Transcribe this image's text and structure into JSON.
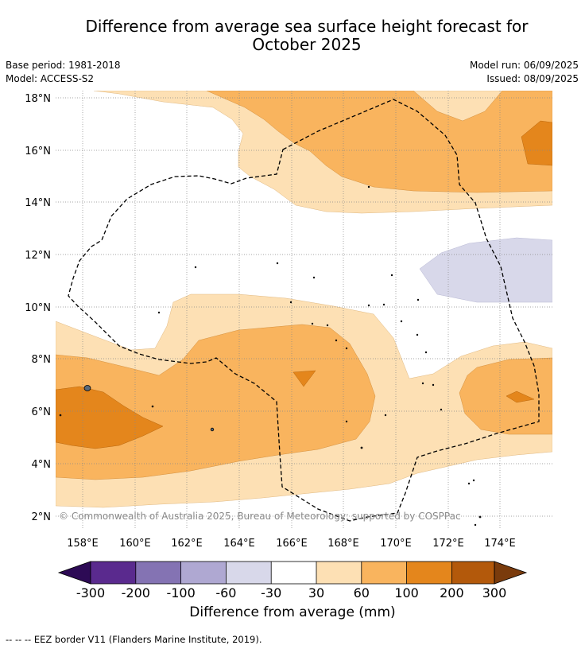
{
  "title_line1": "Difference from average sea surface height forecast for",
  "title_line2": "October 2025",
  "left_meta": {
    "base_period": "Base period: 1981-2018",
    "model": "Model: ACCESS-S2"
  },
  "right_meta": {
    "model_run": "Model run: 06/09/2025",
    "issued": "Issued: 08/09/2025"
  },
  "map": {
    "lat_labels": [
      "18°N",
      "16°N",
      "14°N",
      "12°N",
      "10°N",
      "8°N",
      "6°N",
      "4°N",
      "2°N"
    ],
    "lon_labels": [
      "158°E",
      "160°E",
      "162°E",
      "164°E",
      "166°E",
      "168°E",
      "170°E",
      "172°E",
      "174°E"
    ],
    "copyright": "© Commonwealth of Australia 2025, Bureau of Meteorology; supported by COSPPac"
  },
  "colorbar": {
    "ticks": [
      "-300",
      "-200",
      "-100",
      "-60",
      "-30",
      "30",
      "60",
      "100",
      "200",
      "300"
    ],
    "label": "Difference from average (mm)",
    "colors": [
      "#2d0a55",
      "#5a2a8e",
      "#8473b3",
      "#afa8d2",
      "#d8d8ea",
      "#ffffff",
      "#fde0b4",
      "#f9b45e",
      "#e4861c",
      "#b3590b",
      "#7a3b0c"
    ]
  },
  "footnote": "--  --  -- EEZ border V11 (Flanders Marine Institute, 2019)."
}
